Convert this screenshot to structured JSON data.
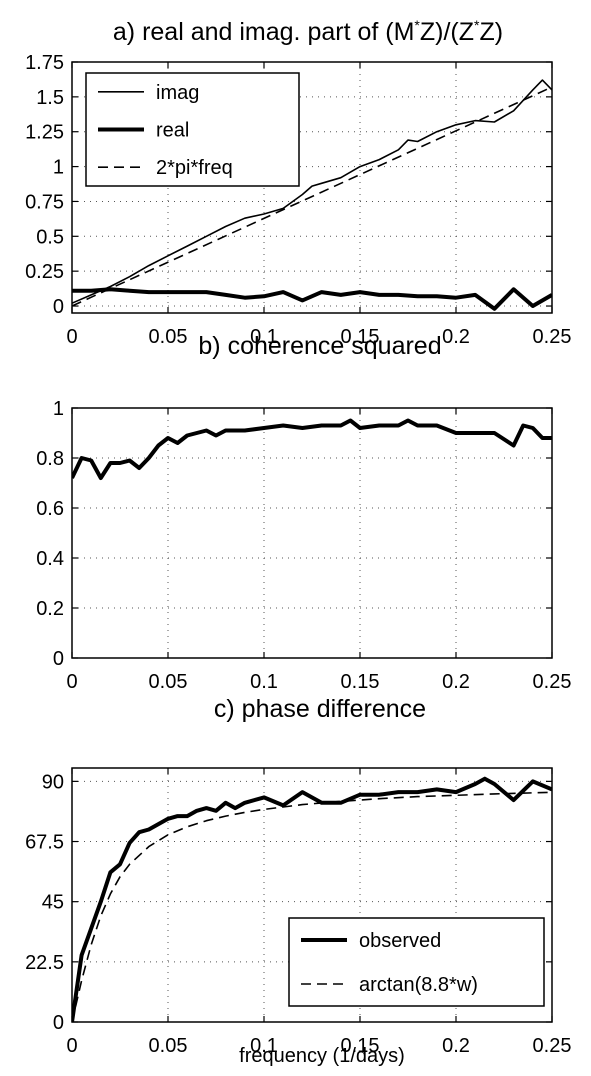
{
  "chart_data": [
    {
      "type": "line",
      "title": "a) real and imag. part of (M*Z)/(Z*Z)",
      "xlabel": "",
      "ylabel": "",
      "xlim": [
        0,
        0.25
      ],
      "ylim": [
        -0.05,
        1.75
      ],
      "xticks": [
        0,
        0.05,
        0.1,
        0.15,
        0.2,
        0.25
      ],
      "yticks": [
        0,
        0.25,
        0.5,
        0.75,
        1,
        1.25,
        1.5,
        1.75
      ],
      "grid": true,
      "legend_position": "top-left",
      "series": [
        {
          "name": "imag",
          "style": "thin-solid",
          "x": [
            0,
            0.01,
            0.02,
            0.03,
            0.04,
            0.05,
            0.06,
            0.07,
            0.08,
            0.09,
            0.1,
            0.11,
            0.12,
            0.125,
            0.13,
            0.14,
            0.15,
            0.16,
            0.17,
            0.175,
            0.18,
            0.19,
            0.2,
            0.21,
            0.22,
            0.23,
            0.24,
            0.245,
            0.25
          ],
          "y": [
            0.02,
            0.08,
            0.14,
            0.21,
            0.29,
            0.36,
            0.43,
            0.5,
            0.57,
            0.63,
            0.66,
            0.7,
            0.8,
            0.86,
            0.88,
            0.92,
            1.0,
            1.05,
            1.12,
            1.19,
            1.18,
            1.25,
            1.3,
            1.33,
            1.32,
            1.4,
            1.55,
            1.62,
            1.55
          ]
        },
        {
          "name": "real",
          "style": "thick-solid",
          "x": [
            0,
            0.01,
            0.02,
            0.03,
            0.04,
            0.05,
            0.06,
            0.07,
            0.08,
            0.09,
            0.1,
            0.11,
            0.12,
            0.13,
            0.14,
            0.15,
            0.16,
            0.17,
            0.18,
            0.19,
            0.2,
            0.21,
            0.22,
            0.23,
            0.24,
            0.25
          ],
          "y": [
            0.11,
            0.11,
            0.12,
            0.11,
            0.1,
            0.1,
            0.1,
            0.1,
            0.08,
            0.06,
            0.07,
            0.1,
            0.04,
            0.1,
            0.08,
            0.1,
            0.08,
            0.08,
            0.07,
            0.07,
            0.06,
            0.08,
            -0.02,
            0.12,
            0.0,
            0.08
          ]
        },
        {
          "name": "2*pi*freq",
          "style": "dashed",
          "x": [
            0,
            0.25
          ],
          "y": [
            0,
            1.571
          ]
        }
      ]
    },
    {
      "type": "line",
      "title": "b) coherence squared",
      "xlabel": "",
      "ylabel": "",
      "xlim": [
        0,
        0.25
      ],
      "ylim": [
        0,
        1
      ],
      "xticks": [
        0,
        0.05,
        0.1,
        0.15,
        0.2,
        0.25
      ],
      "yticks": [
        0,
        0.2,
        0.4,
        0.6,
        0.8,
        1
      ],
      "grid": true,
      "series": [
        {
          "style": "thick-solid",
          "x": [
            0,
            0.005,
            0.01,
            0.015,
            0.02,
            0.025,
            0.03,
            0.035,
            0.04,
            0.045,
            0.05,
            0.055,
            0.06,
            0.065,
            0.07,
            0.075,
            0.08,
            0.09,
            0.1,
            0.11,
            0.12,
            0.13,
            0.14,
            0.145,
            0.15,
            0.16,
            0.17,
            0.175,
            0.18,
            0.19,
            0.2,
            0.21,
            0.22,
            0.23,
            0.235,
            0.24,
            0.245,
            0.25
          ],
          "y": [
            0.72,
            0.8,
            0.79,
            0.72,
            0.78,
            0.78,
            0.79,
            0.76,
            0.8,
            0.85,
            0.88,
            0.86,
            0.89,
            0.9,
            0.91,
            0.89,
            0.91,
            0.91,
            0.92,
            0.93,
            0.92,
            0.93,
            0.93,
            0.95,
            0.92,
            0.93,
            0.93,
            0.95,
            0.93,
            0.93,
            0.9,
            0.9,
            0.9,
            0.85,
            0.93,
            0.92,
            0.88,
            0.88
          ]
        }
      ]
    },
    {
      "type": "line",
      "title": "c) phase difference",
      "xlabel": "frequency (1/days)",
      "ylabel": "",
      "xlim": [
        0,
        0.25
      ],
      "ylim": [
        0,
        95
      ],
      "xticks": [
        0,
        0.05,
        0.1,
        0.15,
        0.2,
        0.25
      ],
      "yticks": [
        0,
        22.5,
        45,
        67.5,
        90
      ],
      "grid": true,
      "legend_position": "bottom-right",
      "series": [
        {
          "name": "observed",
          "style": "thick-solid",
          "x": [
            0,
            0.005,
            0.01,
            0.015,
            0.02,
            0.025,
            0.03,
            0.035,
            0.04,
            0.045,
            0.05,
            0.055,
            0.06,
            0.065,
            0.07,
            0.075,
            0.08,
            0.085,
            0.09,
            0.1,
            0.11,
            0.12,
            0.13,
            0.14,
            0.15,
            0.16,
            0.17,
            0.18,
            0.19,
            0.2,
            0.21,
            0.215,
            0.22,
            0.23,
            0.24,
            0.25
          ],
          "y": [
            0,
            25,
            35,
            45,
            56,
            59,
            67,
            71,
            72,
            74,
            76,
            77,
            77,
            79,
            80,
            79,
            82,
            80,
            82,
            84,
            81,
            86,
            82,
            82,
            85,
            85,
            86,
            86,
            87,
            86,
            89,
            91,
            89,
            83,
            90,
            87
          ]
        },
        {
          "name": "arctan(8.8*w)",
          "style": "dashed",
          "x": [
            0,
            0.005,
            0.01,
            0.015,
            0.02,
            0.025,
            0.03,
            0.04,
            0.05,
            0.06,
            0.07,
            0.08,
            0.09,
            0.1,
            0.12,
            0.14,
            0.16,
            0.18,
            0.2,
            0.22,
            0.25
          ],
          "y": [
            0,
            15.5,
            28.9,
            39.7,
            47.9,
            54.3,
            59.0,
            65.6,
            70.0,
            73.0,
            75.3,
            77.0,
            78.4,
            79.5,
            81.3,
            82.5,
            83.5,
            84.3,
            84.8,
            85.3,
            85.9
          ]
        }
      ]
    }
  ]
}
